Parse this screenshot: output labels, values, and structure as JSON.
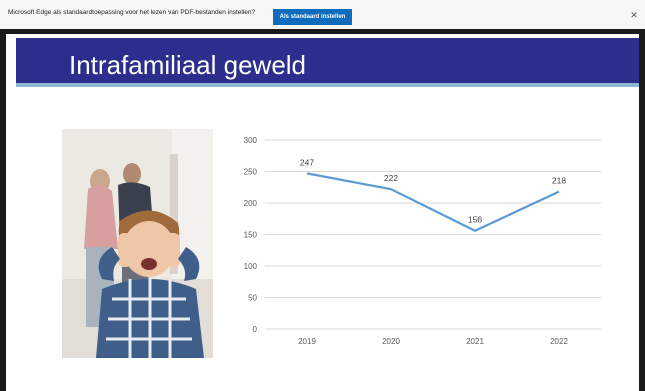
{
  "browser_bar": {
    "message": "Microsoft Edge als standaardtoepassing voor het lezen van PDF-bestanden instellen?",
    "button_label": "Als standaard instellen",
    "close_icon": "close-icon"
  },
  "slide": {
    "title": "Intrafamiliaal geweld",
    "colors": {
      "title_band": "#2b2e8c",
      "accent_line": "#8fb6d4",
      "series_line": "#5b9bd5"
    },
    "photo_description": ""
  },
  "chart_data": {
    "type": "line",
    "categories": [
      "2019",
      "2020",
      "2021",
      "2022"
    ],
    "series": [
      {
        "values": [
          247,
          222,
          156,
          218
        ]
      }
    ],
    "data_labels": [
      "247",
      "222",
      "156",
      "218"
    ],
    "ylim": [
      0,
      300
    ],
    "yticks": [
      "0",
      "50",
      "100",
      "150",
      "200",
      "250",
      "300"
    ],
    "grid": true,
    "legend": "none"
  }
}
